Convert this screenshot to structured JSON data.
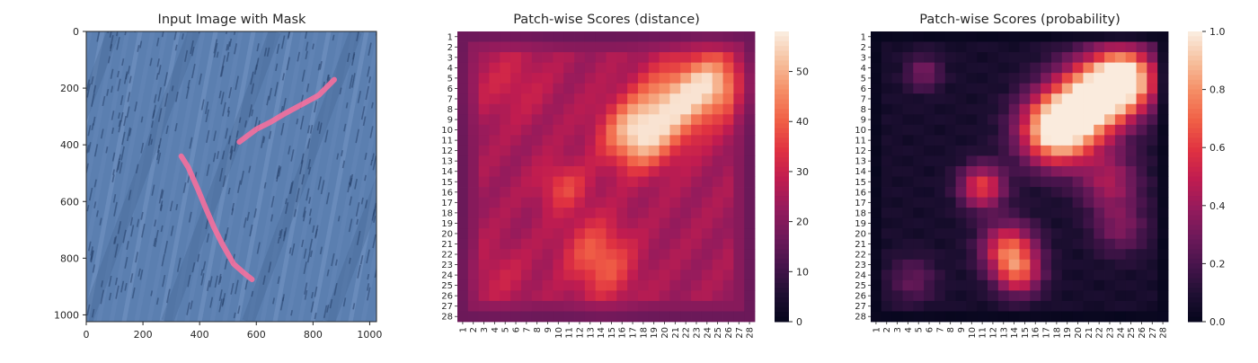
{
  "chart_data": [
    {
      "type": "image",
      "title": "Input Image with Mask",
      "xlim": [
        0,
        1024
      ],
      "ylim": [
        1024,
        0
      ],
      "xticks": [
        0,
        200,
        400,
        600,
        800,
        1000
      ],
      "yticks": [
        0,
        200,
        400,
        600,
        800,
        1000
      ],
      "colors": {
        "fabric": "#5b7fb0",
        "fabric_dark": "#3c5d8c",
        "mask": "#ff6f9c"
      },
      "mask_strokes": [
        [
          [
            540,
            390
          ],
          [
            600,
            345
          ],
          [
            650,
            320
          ],
          [
            700,
            290
          ],
          [
            760,
            258
          ],
          [
            820,
            225
          ],
          [
            875,
            170
          ]
        ],
        [
          [
            335,
            440
          ],
          [
            360,
            480
          ],
          [
            395,
            560
          ],
          [
            420,
            620
          ],
          [
            450,
            690
          ],
          [
            480,
            750
          ],
          [
            520,
            820
          ],
          [
            560,
            855
          ],
          [
            585,
            875
          ]
        ]
      ]
    },
    {
      "type": "heatmap",
      "title": "Patch-wise Scores (distance)",
      "colormap": "rocket",
      "zlim": [
        0,
        58
      ],
      "colorbar_ticks": [
        0,
        10,
        20,
        30,
        40,
        50
      ],
      "grid_size": 28,
      "row_labels": [
        "1",
        "2",
        "3",
        "4",
        "5",
        "6",
        "7",
        "8",
        "9",
        "10",
        "11",
        "12",
        "13",
        "14",
        "15",
        "16",
        "17",
        "18",
        "19",
        "20",
        "21",
        "22",
        "23",
        "24",
        "25",
        "26",
        "27",
        "28"
      ],
      "col_labels": [
        "1",
        "2",
        "3",
        "4",
        "5",
        "6",
        "7",
        "8",
        "9",
        "10",
        "11",
        "12",
        "13",
        "14",
        "15",
        "16",
        "17",
        "18",
        "19",
        "20",
        "21",
        "22",
        "23",
        "24",
        "25",
        "26",
        "27",
        "28"
      ],
      "hot_regions": [
        {
          "row": 10,
          "col": 17,
          "value": 55
        },
        {
          "row": 5,
          "col": 24,
          "value": 50
        },
        {
          "row": 15,
          "col": 10,
          "value": 40
        },
        {
          "row": 21,
          "col": 13,
          "value": 40
        }
      ]
    },
    {
      "type": "heatmap",
      "title": "Patch-wise Scores (probability)",
      "colormap": "rocket",
      "zlim": [
        0,
        1
      ],
      "colorbar_ticks": [
        "0.0",
        "0.2",
        "0.4",
        "0.6",
        "0.8",
        "1.0"
      ],
      "grid_size": 28,
      "row_labels": [
        "1",
        "2",
        "3",
        "4",
        "5",
        "6",
        "7",
        "8",
        "9",
        "10",
        "11",
        "12",
        "13",
        "14",
        "15",
        "16",
        "17",
        "18",
        "19",
        "20",
        "21",
        "22",
        "23",
        "24",
        "25",
        "26",
        "27",
        "28"
      ],
      "col_labels": [
        "1",
        "2",
        "3",
        "4",
        "5",
        "6",
        "7",
        "8",
        "9",
        "10",
        "11",
        "12",
        "13",
        "14",
        "15",
        "16",
        "17",
        "18",
        "19",
        "20",
        "21",
        "22",
        "23",
        "24",
        "25",
        "26",
        "27",
        "28"
      ]
    }
  ]
}
